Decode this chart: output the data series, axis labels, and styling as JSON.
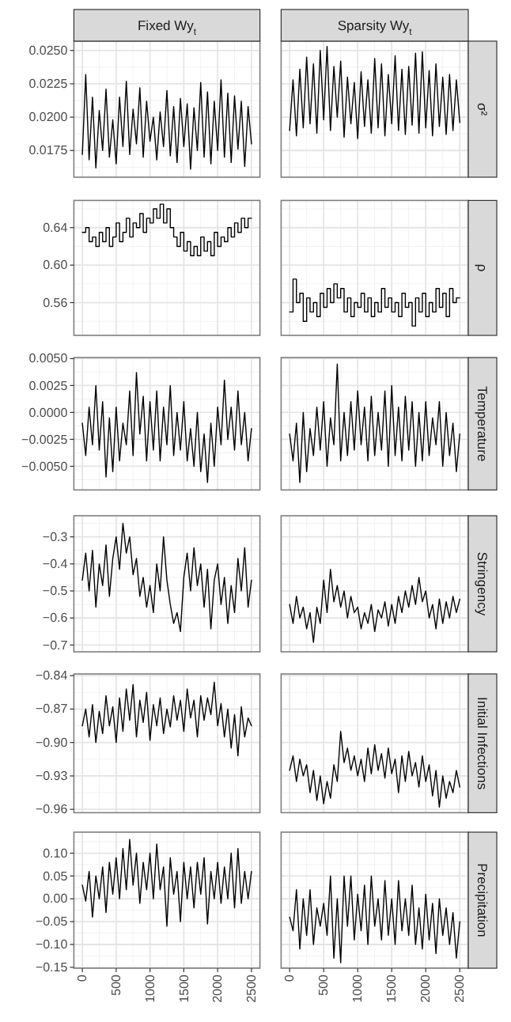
{
  "chart_data": [
    {
      "type": "line",
      "title": "Fixed Wy$_{t}$",
      "x": [
        0,
        50,
        100,
        150,
        200,
        250,
        300,
        350,
        400,
        450,
        500,
        550,
        600,
        650,
        700,
        750,
        800,
        850,
        900,
        950,
        1000,
        1050,
        1100,
        1150,
        1200,
        1250,
        1300,
        1350,
        1400,
        1450,
        1500,
        1550,
        1600,
        1650,
        1700,
        1750,
        1800,
        1850,
        1900,
        1950,
        2000,
        2050,
        2100,
        2150,
        2200,
        2250,
        2300,
        2350,
        2400,
        2450,
        2500
      ],
      "values": [
        0.0172,
        0.0232,
        0.0168,
        0.0215,
        0.0162,
        0.0205,
        0.0175,
        0.0221,
        0.017,
        0.0198,
        0.0165,
        0.0215,
        0.0178,
        0.0227,
        0.0172,
        0.0206,
        0.018,
        0.0222,
        0.017,
        0.0212,
        0.0182,
        0.02,
        0.0168,
        0.0204,
        0.0178,
        0.022,
        0.0171,
        0.0208,
        0.0166,
        0.0214,
        0.0178,
        0.021,
        0.0161,
        0.0207,
        0.0175,
        0.0226,
        0.017,
        0.0219,
        0.0165,
        0.0212,
        0.0175,
        0.0228,
        0.017,
        0.0218,
        0.0166,
        0.0216,
        0.0176,
        0.0212,
        0.0163,
        0.0208,
        0.018
      ],
      "color": "#000000",
      "xlim": [
        -125,
        2625
      ],
      "xticks": [
        0,
        500,
        1000,
        1500,
        2000,
        2500
      ],
      "ylim": [
        0.0155,
        0.0257
      ],
      "yticks": [
        {
          "value": 0.0175,
          "label": "0.0175"
        },
        {
          "value": 0.02,
          "label": "0.0200"
        },
        {
          "value": 0.0225,
          "label": "0.0225"
        },
        {
          "value": 0.025,
          "label": "0.0250"
        }
      ],
      "grid": true,
      "tick_labels": "y"
    },
    {
      "type": "line",
      "title": "Sparsity Wy$_{t}$",
      "annotations": [
        "σ²"
      ],
      "x": [
        0,
        50,
        100,
        150,
        200,
        250,
        300,
        350,
        400,
        450,
        500,
        550,
        600,
        650,
        700,
        750,
        800,
        850,
        900,
        950,
        1000,
        1050,
        1100,
        1150,
        1200,
        1250,
        1300,
        1350,
        1400,
        1450,
        1500,
        1550,
        1600,
        1650,
        1700,
        1750,
        1800,
        1850,
        1900,
        1950,
        2000,
        2050,
        2100,
        2150,
        2200,
        2250,
        2300,
        2350,
        2400,
        2450,
        2500
      ],
      "values": [
        0.019,
        0.0228,
        0.0186,
        0.0236,
        0.0192,
        0.0245,
        0.0195,
        0.024,
        0.0188,
        0.025,
        0.0198,
        0.0253,
        0.019,
        0.0238,
        0.02,
        0.0242,
        0.0185,
        0.023,
        0.0195,
        0.0226,
        0.0184,
        0.0234,
        0.0193,
        0.0228,
        0.0188,
        0.0244,
        0.0192,
        0.024,
        0.0186,
        0.0232,
        0.0195,
        0.0246,
        0.019,
        0.0236,
        0.0187,
        0.0238,
        0.0194,
        0.0248,
        0.0188,
        0.0249,
        0.0192,
        0.0235,
        0.0186,
        0.024,
        0.0193,
        0.023,
        0.0187,
        0.0232,
        0.019,
        0.0228,
        0.0196
      ],
      "color": "#000000",
      "xlim": [
        -125,
        2625
      ],
      "xticks": [
        0,
        500,
        1000,
        1500,
        2000,
        2500
      ],
      "ylim": [
        0.0155,
        0.0257
      ],
      "yticks": [
        {
          "value": 0.0175,
          "label": null
        },
        {
          "value": 0.02,
          "label": null
        },
        {
          "value": 0.0225,
          "label": null
        },
        {
          "value": 0.025,
          "label": null
        }
      ],
      "grid": true,
      "tick_labels": false
    },
    {
      "type": "step",
      "x": [
        0,
        50,
        100,
        150,
        200,
        250,
        300,
        350,
        400,
        450,
        500,
        550,
        600,
        650,
        700,
        750,
        800,
        850,
        900,
        950,
        1000,
        1050,
        1100,
        1150,
        1200,
        1250,
        1300,
        1350,
        1400,
        1450,
        1500,
        1550,
        1600,
        1650,
        1700,
        1750,
        1800,
        1850,
        1900,
        1950,
        2000,
        2050,
        2100,
        2150,
        2200,
        2250,
        2300,
        2350,
        2400,
        2450,
        2500
      ],
      "values": [
        0.635,
        0.64,
        0.625,
        0.63,
        0.62,
        0.635,
        0.625,
        0.64,
        0.62,
        0.63,
        0.645,
        0.625,
        0.635,
        0.65,
        0.63,
        0.645,
        0.64,
        0.655,
        0.635,
        0.65,
        0.645,
        0.66,
        0.65,
        0.665,
        0.645,
        0.66,
        0.64,
        0.63,
        0.62,
        0.635,
        0.615,
        0.625,
        0.61,
        0.62,
        0.61,
        0.63,
        0.615,
        0.625,
        0.61,
        0.635,
        0.62,
        0.63,
        0.625,
        0.64,
        0.63,
        0.645,
        0.635,
        0.65,
        0.64,
        0.65,
        0.65
      ],
      "color": "#000000",
      "xlim": [
        -125,
        2625
      ],
      "xticks": [
        0,
        500,
        1000,
        1500,
        2000,
        2500
      ],
      "ylim": [
        0.525,
        0.669
      ],
      "yticks": [
        0.56,
        {
          "value": 0.6,
          "label": "0.60"
        },
        0.64
      ],
      "grid": true,
      "tick_labels": "y"
    },
    {
      "type": "step",
      "annotations": [
        "ρ"
      ],
      "x": [
        0,
        50,
        100,
        150,
        200,
        250,
        300,
        350,
        400,
        450,
        500,
        550,
        600,
        650,
        700,
        750,
        800,
        850,
        900,
        950,
        1000,
        1050,
        1100,
        1150,
        1200,
        1250,
        1300,
        1350,
        1400,
        1450,
        1500,
        1550,
        1600,
        1650,
        1700,
        1750,
        1800,
        1850,
        1900,
        1950,
        2000,
        2050,
        2100,
        2150,
        2200,
        2250,
        2300,
        2350,
        2400,
        2450,
        2500
      ],
      "values": [
        0.55,
        0.585,
        0.56,
        0.57,
        0.54,
        0.565,
        0.55,
        0.56,
        0.545,
        0.57,
        0.555,
        0.575,
        0.56,
        0.58,
        0.565,
        0.575,
        0.55,
        0.565,
        0.545,
        0.56,
        0.555,
        0.57,
        0.55,
        0.565,
        0.545,
        0.56,
        0.55,
        0.575,
        0.555,
        0.565,
        0.55,
        0.56,
        0.545,
        0.57,
        0.555,
        0.56,
        0.535,
        0.565,
        0.55,
        0.57,
        0.545,
        0.56,
        0.55,
        0.575,
        0.555,
        0.57,
        0.545,
        0.575,
        0.56,
        0.565,
        0.565
      ],
      "color": "#000000",
      "xlim": [
        -125,
        2625
      ],
      "xticks": [
        0,
        500,
        1000,
        1500,
        2000,
        2500
      ],
      "ylim": [
        0.525,
        0.669
      ],
      "yticks": [
        {
          "value": 0.56,
          "label": null
        },
        {
          "value": 0.6,
          "label": null
        },
        {
          "value": 0.64,
          "label": null
        }
      ],
      "grid": true,
      "tick_labels": false
    },
    {
      "type": "line",
      "x": [
        0,
        50,
        100,
        150,
        200,
        250,
        300,
        350,
        400,
        450,
        500,
        550,
        600,
        650,
        700,
        750,
        800,
        850,
        900,
        950,
        1000,
        1050,
        1100,
        1150,
        1200,
        1250,
        1300,
        1350,
        1400,
        1450,
        1500,
        1550,
        1600,
        1650,
        1700,
        1750,
        1800,
        1850,
        1900,
        1950,
        2000,
        2050,
        2100,
        2150,
        2200,
        2250,
        2300,
        2350,
        2400,
        2450,
        2500
      ],
      "values": [
        -0.001,
        -0.004,
        0.0005,
        -0.003,
        0.0025,
        -0.0035,
        0.001,
        -0.006,
        -0.0005,
        -0.0055,
        0.0005,
        -0.0045,
        -0.001,
        -0.003,
        0.002,
        -0.004,
        0.0037,
        -0.002,
        0.0015,
        -0.0045,
        0.001,
        -0.0035,
        0.002,
        -0.0045,
        0.0005,
        -0.003,
        0.0025,
        -0.004,
        0.0,
        -0.0035,
        0.001,
        -0.0045,
        -0.0015,
        -0.005,
        0.0,
        -0.0055,
        -0.002,
        -0.0065,
        -0.001,
        -0.005,
        0.0005,
        -0.003,
        0.003,
        -0.0025,
        0.0005,
        -0.0035,
        0.002,
        -0.003,
        0.0,
        -0.0045,
        -0.0015
      ],
      "color": "#000000",
      "xlim": [
        -125,
        2625
      ],
      "xticks": [
        0,
        500,
        1000,
        1500,
        2000,
        2500
      ],
      "ylim": [
        -0.0072,
        0.0051
      ],
      "yticks": [
        {
          "value": -0.005,
          "label": "−0.0050"
        },
        {
          "value": -0.0025,
          "label": "−0.0025"
        },
        {
          "value": 0,
          "label": "0.0000"
        },
        {
          "value": 0.0025,
          "label": "0.0025"
        },
        {
          "value": 0.005,
          "label": "0.0050"
        }
      ],
      "grid": true,
      "tick_labels": "y"
    },
    {
      "type": "line",
      "annotations": [
        "Temperature"
      ],
      "x": [
        0,
        50,
        100,
        150,
        200,
        250,
        300,
        350,
        400,
        450,
        500,
        550,
        600,
        650,
        700,
        750,
        800,
        850,
        900,
        950,
        1000,
        1050,
        1100,
        1150,
        1200,
        1250,
        1300,
        1350,
        1400,
        1450,
        1500,
        1550,
        1600,
        1650,
        1700,
        1750,
        1800,
        1850,
        1900,
        1950,
        2000,
        2050,
        2100,
        2150,
        2200,
        2250,
        2300,
        2350,
        2400,
        2450,
        2500
      ],
      "values": [
        -0.002,
        -0.0045,
        -0.001,
        -0.0065,
        0.0,
        -0.0055,
        -0.0015,
        -0.004,
        0.0005,
        -0.0035,
        0.001,
        -0.005,
        -0.0005,
        -0.003,
        0.0045,
        -0.0045,
        0.0,
        -0.004,
        0.001,
        -0.0035,
        0.002,
        -0.003,
        0.0005,
        -0.0045,
        0.0015,
        -0.004,
        0.0,
        -0.0035,
        0.002,
        -0.005,
        0.0025,
        -0.004,
        0.0005,
        -0.0045,
        0.0015,
        -0.0035,
        0.001,
        -0.005,
        0.0,
        -0.0045,
        0.001,
        -0.004,
        -0.0005,
        -0.003,
        0.001,
        -0.005,
        0.0,
        -0.004,
        -0.001,
        -0.0055,
        -0.002
      ],
      "color": "#000000",
      "xlim": [
        -125,
        2625
      ],
      "xticks": [
        0,
        500,
        1000,
        1500,
        2000,
        2500
      ],
      "ylim": [
        -0.0072,
        0.0051
      ],
      "yticks": [
        {
          "value": -0.005,
          "label": null
        },
        {
          "value": -0.0025,
          "label": null
        },
        {
          "value": 0,
          "label": null
        },
        {
          "value": 0.0025,
          "label": null
        },
        {
          "value": 0.005,
          "label": null
        }
      ],
      "grid": true,
      "tick_labels": false
    },
    {
      "type": "line",
      "x": [
        0,
        50,
        100,
        150,
        200,
        250,
        300,
        350,
        400,
        450,
        500,
        550,
        600,
        650,
        700,
        750,
        800,
        850,
        900,
        950,
        1000,
        1050,
        1100,
        1150,
        1200,
        1250,
        1300,
        1350,
        1400,
        1450,
        1500,
        1550,
        1600,
        1650,
        1700,
        1750,
        1800,
        1850,
        1900,
        1950,
        2000,
        2050,
        2100,
        2150,
        2200,
        2250,
        2300,
        2350,
        2400,
        2450,
        2500
      ],
      "values": [
        -0.46,
        -0.36,
        -0.5,
        -0.35,
        -0.56,
        -0.4,
        -0.48,
        -0.33,
        -0.52,
        -0.38,
        -0.3,
        -0.42,
        -0.25,
        -0.36,
        -0.3,
        -0.44,
        -0.38,
        -0.52,
        -0.45,
        -0.56,
        -0.48,
        -0.58,
        -0.4,
        -0.5,
        -0.3,
        -0.46,
        -0.55,
        -0.62,
        -0.58,
        -0.65,
        -0.45,
        -0.36,
        -0.5,
        -0.34,
        -0.48,
        -0.4,
        -0.56,
        -0.42,
        -0.64,
        -0.46,
        -0.4,
        -0.55,
        -0.45,
        -0.62,
        -0.48,
        -0.58,
        -0.38,
        -0.5,
        -0.34,
        -0.56,
        -0.46
      ],
      "color": "#000000",
      "xlim": [
        -125,
        2625
      ],
      "xticks": [
        0,
        500,
        1000,
        1500,
        2000,
        2500
      ],
      "ylim": [
        -0.725,
        -0.222
      ],
      "yticks": [
        {
          "value": -0.7,
          "label": "−0.7"
        },
        {
          "value": -0.6,
          "label": "−0.6"
        },
        {
          "value": -0.5,
          "label": "−0.5"
        },
        {
          "value": -0.4,
          "label": "−0.4"
        },
        {
          "value": -0.3,
          "label": "−0.3"
        }
      ],
      "grid": true,
      "tick_labels": "y"
    },
    {
      "type": "line",
      "annotations": [
        "Stringency"
      ],
      "x": [
        0,
        50,
        100,
        150,
        200,
        250,
        300,
        350,
        400,
        450,
        500,
        550,
        600,
        650,
        700,
        750,
        800,
        850,
        900,
        950,
        1000,
        1050,
        1100,
        1150,
        1200,
        1250,
        1300,
        1350,
        1400,
        1450,
        1500,
        1550,
        1600,
        1650,
        1700,
        1750,
        1800,
        1850,
        1900,
        1950,
        2000,
        2050,
        2100,
        2150,
        2200,
        2250,
        2300,
        2350,
        2400,
        2450,
        2500
      ],
      "values": [
        -0.55,
        -0.62,
        -0.52,
        -0.6,
        -0.56,
        -0.64,
        -0.58,
        -0.69,
        -0.56,
        -0.62,
        -0.46,
        -0.58,
        -0.42,
        -0.54,
        -0.48,
        -0.56,
        -0.5,
        -0.6,
        -0.52,
        -0.58,
        -0.56,
        -0.64,
        -0.58,
        -0.62,
        -0.55,
        -0.65,
        -0.57,
        -0.6,
        -0.54,
        -0.63,
        -0.55,
        -0.62,
        -0.52,
        -0.58,
        -0.5,
        -0.56,
        -0.48,
        -0.55,
        -0.45,
        -0.54,
        -0.5,
        -0.6,
        -0.55,
        -0.64,
        -0.53,
        -0.62,
        -0.54,
        -0.6,
        -0.52,
        -0.58,
        -0.53
      ],
      "color": "#000000",
      "xlim": [
        -125,
        2625
      ],
      "xticks": [
        0,
        500,
        1000,
        1500,
        2000,
        2500
      ],
      "ylim": [
        -0.725,
        -0.222
      ],
      "yticks": [
        {
          "value": -0.7,
          "label": null
        },
        {
          "value": -0.6,
          "label": null
        },
        {
          "value": -0.5,
          "label": null
        },
        {
          "value": -0.4,
          "label": null
        },
        {
          "value": -0.3,
          "label": null
        }
      ],
      "grid": true,
      "tick_labels": false
    },
    {
      "type": "line",
      "x": [
        0,
        50,
        100,
        150,
        200,
        250,
        300,
        350,
        400,
        450,
        500,
        550,
        600,
        650,
        700,
        750,
        800,
        850,
        900,
        950,
        1000,
        1050,
        1100,
        1150,
        1200,
        1250,
        1300,
        1350,
        1400,
        1450,
        1500,
        1550,
        1600,
        1650,
        1700,
        1750,
        1800,
        1850,
        1900,
        1950,
        2000,
        2050,
        2100,
        2150,
        2200,
        2250,
        2300,
        2350,
        2400,
        2450,
        2500
      ],
      "values": [
        -0.885,
        -0.87,
        -0.895,
        -0.866,
        -0.9,
        -0.872,
        -0.892,
        -0.858,
        -0.885,
        -0.868,
        -0.9,
        -0.86,
        -0.89,
        -0.852,
        -0.88,
        -0.848,
        -0.895,
        -0.862,
        -0.882,
        -0.855,
        -0.898,
        -0.866,
        -0.885,
        -0.86,
        -0.892,
        -0.87,
        -0.886,
        -0.858,
        -0.88,
        -0.862,
        -0.89,
        -0.852,
        -0.878,
        -0.862,
        -0.895,
        -0.858,
        -0.88,
        -0.86,
        -0.875,
        -0.846,
        -0.885,
        -0.865,
        -0.895,
        -0.87,
        -0.905,
        -0.875,
        -0.912,
        -0.868,
        -0.895,
        -0.878,
        -0.885
      ],
      "color": "#000000",
      "xlim": [
        -125,
        2625
      ],
      "xticks": [
        0,
        500,
        1000,
        1500,
        2000,
        2500
      ],
      "ylim": [
        -0.963,
        -0.8385
      ],
      "yticks": [
        {
          "value": -0.96,
          "label": "−0.96"
        },
        {
          "value": -0.93,
          "label": "−0.93"
        },
        {
          "value": -0.9,
          "label": "−0.90"
        },
        {
          "value": -0.87,
          "label": "−0.87"
        },
        {
          "value": -0.84,
          "label": "−0.84"
        }
      ],
      "grid": true,
      "tick_labels": "y"
    },
    {
      "type": "line",
      "annotations": [
        "Initial Infections"
      ],
      "x": [
        0,
        50,
        100,
        150,
        200,
        250,
        300,
        350,
        400,
        450,
        500,
        550,
        600,
        650,
        700,
        750,
        800,
        850,
        900,
        950,
        1000,
        1050,
        1100,
        1150,
        1200,
        1250,
        1300,
        1350,
        1400,
        1450,
        1500,
        1550,
        1600,
        1650,
        1700,
        1750,
        1800,
        1850,
        1900,
        1950,
        2000,
        2050,
        2100,
        2150,
        2200,
        2250,
        2300,
        2350,
        2400,
        2450,
        2500
      ],
      "values": [
        -0.925,
        -0.912,
        -0.935,
        -0.915,
        -0.93,
        -0.92,
        -0.945,
        -0.925,
        -0.952,
        -0.93,
        -0.955,
        -0.935,
        -0.95,
        -0.92,
        -0.935,
        -0.89,
        -0.918,
        -0.905,
        -0.925,
        -0.912,
        -0.93,
        -0.915,
        -0.935,
        -0.905,
        -0.928,
        -0.902,
        -0.925,
        -0.91,
        -0.932,
        -0.905,
        -0.928,
        -0.915,
        -0.945,
        -0.912,
        -0.935,
        -0.908,
        -0.93,
        -0.918,
        -0.94,
        -0.912,
        -0.935,
        -0.92,
        -0.948,
        -0.925,
        -0.958,
        -0.93,
        -0.95,
        -0.935,
        -0.945,
        -0.925,
        -0.94
      ],
      "color": "#000000",
      "xlim": [
        -125,
        2625
      ],
      "xticks": [
        0,
        500,
        1000,
        1500,
        2000,
        2500
      ],
      "ylim": [
        -0.963,
        -0.8385
      ],
      "yticks": [
        {
          "value": -0.96,
          "label": null
        },
        {
          "value": -0.93,
          "label": null
        },
        {
          "value": -0.9,
          "label": null
        },
        {
          "value": -0.87,
          "label": null
        },
        {
          "value": -0.84,
          "label": null
        }
      ],
      "grid": true,
      "tick_labels": false
    },
    {
      "type": "line",
      "x": [
        0,
        50,
        100,
        150,
        200,
        250,
        300,
        350,
        400,
        450,
        500,
        550,
        600,
        650,
        700,
        750,
        800,
        850,
        900,
        950,
        1000,
        1050,
        1100,
        1150,
        1200,
        1250,
        1300,
        1350,
        1400,
        1450,
        1500,
        1550,
        1600,
        1650,
        1700,
        1750,
        1800,
        1850,
        1900,
        1950,
        2000,
        2050,
        2100,
        2150,
        2200,
        2250,
        2300,
        2350,
        2400,
        2450,
        2500
      ],
      "values": [
        0.03,
        -0.005,
        0.06,
        -0.04,
        0.05,
        0.0,
        0.07,
        -0.03,
        0.08,
        0.01,
        0.09,
        0.0,
        0.11,
        0.02,
        0.13,
        0.03,
        0.1,
        -0.01,
        0.08,
        0.02,
        0.1,
        0.0,
        0.12,
        0.02,
        0.07,
        -0.06,
        0.09,
        0.01,
        0.06,
        -0.05,
        0.08,
        0.0,
        0.07,
        -0.02,
        0.08,
        0.01,
        0.09,
        -0.055,
        0.06,
        0.0,
        0.08,
        -0.01,
        0.07,
        0.0,
        0.1,
        -0.02,
        0.11,
        -0.01,
        0.06,
        0.0,
        0.06
      ],
      "color": "#000000",
      "xlim": [
        -125,
        2625
      ],
      "xticks": [
        0,
        500,
        1000,
        1500,
        2000,
        2500
      ],
      "ylim": [
        -0.152,
        0.146
      ],
      "yticks": [
        {
          "value": -0.15,
          "label": "−0.15"
        },
        {
          "value": -0.1,
          "label": "−0.10"
        },
        {
          "value": -0.05,
          "label": "−0.05"
        },
        {
          "value": 0,
          "label": "0.00"
        },
        {
          "value": 0.05,
          "label": "0.05"
        },
        {
          "value": 0.1,
          "label": "0.10"
        }
      ],
      "grid": true
    },
    {
      "type": "line",
      "annotations": [
        "Precipitation"
      ],
      "x": [
        0,
        50,
        100,
        150,
        200,
        250,
        300,
        350,
        400,
        450,
        500,
        550,
        600,
        650,
        700,
        750,
        800,
        850,
        900,
        950,
        1000,
        1050,
        1100,
        1150,
        1200,
        1250,
        1300,
        1350,
        1400,
        1450,
        1500,
        1550,
        1600,
        1650,
        1700,
        1750,
        1800,
        1850,
        1900,
        1950,
        2000,
        2050,
        2100,
        2150,
        2200,
        2250,
        2300,
        2350,
        2400,
        2450,
        2500
      ],
      "values": [
        -0.04,
        -0.07,
        0.02,
        -0.11,
        0.0,
        -0.08,
        0.02,
        -0.1,
        -0.02,
        -0.06,
        -0.01,
        -0.08,
        0.05,
        -0.13,
        0.0,
        -0.14,
        0.05,
        -0.06,
        0.05,
        -0.09,
        0.01,
        -0.07,
        0.03,
        -0.1,
        0.05,
        -0.06,
        0.0,
        -0.09,
        0.04,
        -0.08,
        0.0,
        -0.1,
        0.04,
        -0.07,
        0.0,
        -0.08,
        0.03,
        -0.1,
        -0.02,
        -0.11,
        0.01,
        -0.09,
        -0.01,
        -0.12,
        0.0,
        -0.08,
        -0.02,
        -0.1,
        -0.03,
        -0.13,
        -0.05
      ],
      "color": "#000000",
      "xlim": [
        -125,
        2625
      ],
      "xticks": [
        0,
        500,
        1000,
        1500,
        2000,
        2500
      ],
      "ylim": [
        -0.152,
        0.146
      ],
      "yticks": [
        {
          "value": -0.15,
          "label": null
        },
        {
          "value": -0.1,
          "label": null
        },
        {
          "value": -0.05,
          "label": null
        },
        {
          "value": 0,
          "label": null
        },
        {
          "value": 0.05,
          "label": null
        },
        {
          "value": 0.1,
          "label": null
        }
      ],
      "grid": true,
      "tick_labels": "x"
    }
  ]
}
